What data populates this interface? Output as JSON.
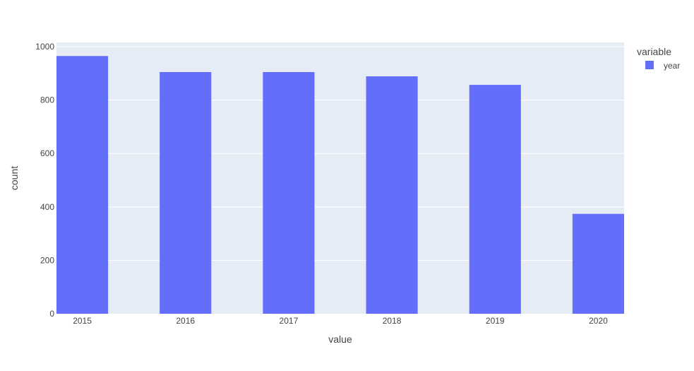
{
  "chart_data": {
    "type": "bar",
    "categories": [
      "2015",
      "2016",
      "2017",
      "2018",
      "2019",
      "2020"
    ],
    "series": [
      {
        "name": "year",
        "values": [
          965,
          905,
          905,
          889,
          857,
          374
        ],
        "color": "#636efa"
      }
    ],
    "xlabel": "value",
    "ylabel": "count",
    "ylim": [
      0,
      1016
    ],
    "yticks": [
      0,
      200,
      400,
      600,
      800,
      1000
    ],
    "grid": true,
    "legend": {
      "title": "variable",
      "position": "right"
    },
    "colors": {
      "plot_background": "#e5ecf6",
      "grid": "#ffffff",
      "bar": "#636efa"
    }
  }
}
